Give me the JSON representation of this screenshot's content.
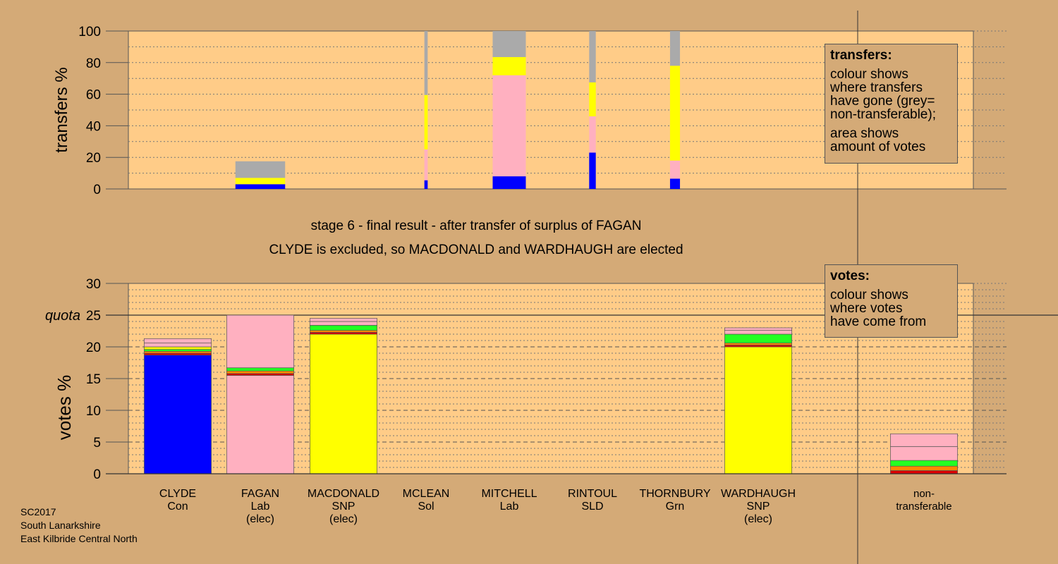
{
  "heading": {
    "line1": "stage 6 - final result - after transfer of surplus of FAGAN",
    "line2": "CLYDE is excluded, so MACDONALD and WARDHAUGH are elected"
  },
  "footer": {
    "line1": "SC2017",
    "line2": "South Lanarkshire",
    "line3": "East Kilbride Central North"
  },
  "notes": {
    "transfers": {
      "title": "transfers:",
      "lines": [
        "colour shows",
        "where transfers",
        "have gone (grey=",
        "non-transferable);"
      ],
      "lines2": [
        "area shows",
        "amount of votes"
      ]
    },
    "votes": {
      "title": "votes:",
      "lines": [
        "colour shows",
        "where votes",
        "have come from"
      ]
    }
  },
  "colors": {
    "background": "#d4aa77",
    "plot": "#ffcc88",
    "blue": "#0000ff",
    "pink": "#ffb0c0",
    "yellow": "#ffff00",
    "green": "#22ff22",
    "orange": "#ff8800",
    "red": "#dd0000",
    "grey": "#aaaaaa"
  },
  "chart_data": [
    {
      "type": "bar",
      "ylabel": "transfers %",
      "ylim": [
        0,
        100
      ],
      "yticks": [
        "0",
        "20",
        "40",
        "60",
        "80",
        "100"
      ],
      "categories": [
        "CLYDE",
        "FAGAN",
        "MACDONALD",
        "MCLEAN",
        "MITCHELL",
        "RINTOUL",
        "THORNBURY",
        "WARDHAUGH"
      ],
      "bars": [
        {
          "candidate": "FAGAN",
          "width": 0.6,
          "segments": [
            {
              "color": "blue",
              "value": 3
            },
            {
              "color": "yellow",
              "value": 4
            },
            {
              "color": "grey",
              "value": 10.5
            }
          ]
        },
        {
          "candidate": "MCLEAN",
          "width": 0.04,
          "segments": [
            {
              "color": "blue",
              "value": 5.5
            },
            {
              "color": "pink",
              "value": 19.5
            },
            {
              "color": "yellow",
              "value": 34.5
            },
            {
              "color": "grey",
              "value": 40.5
            }
          ]
        },
        {
          "candidate": "MITCHELL",
          "width": 0.4,
          "segments": [
            {
              "color": "blue",
              "value": 8
            },
            {
              "color": "pink",
              "value": 64
            },
            {
              "color": "yellow",
              "value": 11.5
            },
            {
              "color": "grey",
              "value": 16.5
            }
          ]
        },
        {
          "candidate": "RINTOUL",
          "width": 0.08,
          "segments": [
            {
              "color": "blue",
              "value": 23
            },
            {
              "color": "pink",
              "value": 23
            },
            {
              "color": "yellow",
              "value": 21.5
            },
            {
              "color": "grey",
              "value": 32.5
            }
          ]
        },
        {
          "candidate": "THORNBURY",
          "width": 0.12,
          "segments": [
            {
              "color": "blue",
              "value": 6.5
            },
            {
              "color": "pink",
              "value": 11.5
            },
            {
              "color": "yellow",
              "value": 60
            },
            {
              "color": "grey",
              "value": 22
            }
          ]
        }
      ],
      "legend": "right"
    },
    {
      "type": "bar",
      "ylabel": "votes %",
      "ylim": [
        0,
        30
      ],
      "yticks": [
        "0",
        "5",
        "10",
        "15",
        "20",
        "25",
        "30"
      ],
      "quota": {
        "label": "quota",
        "value": 25
      },
      "categories": [
        {
          "name": "CLYDE",
          "party": "Con",
          "status": ""
        },
        {
          "name": "FAGAN",
          "party": "Lab",
          "status": "(elec)"
        },
        {
          "name": "MACDONALD",
          "party": "SNP",
          "status": "(elec)"
        },
        {
          "name": "MCLEAN",
          "party": "Sol",
          "status": ""
        },
        {
          "name": "MITCHELL",
          "party": "Lab",
          "status": ""
        },
        {
          "name": "RINTOUL",
          "party": "SLD",
          "status": ""
        },
        {
          "name": "THORNBURY",
          "party": "Grn",
          "status": ""
        },
        {
          "name": "WARDHAUGH",
          "party": "SNP",
          "status": "(elec)"
        }
      ],
      "nontransferable_label": [
        "non-",
        "transferable"
      ],
      "bars": [
        {
          "candidate": "CLYDE",
          "segments": [
            {
              "color": "blue",
              "value": 18.7
            },
            {
              "color": "red",
              "value": 0.3
            },
            {
              "color": "orange",
              "value": 0.3
            },
            {
              "color": "green",
              "value": 0.3
            },
            {
              "color": "yellow",
              "value": 0.4
            },
            {
              "color": "pink",
              "value": 0.6
            },
            {
              "color": "pink",
              "value": 0.7
            }
          ]
        },
        {
          "candidate": "FAGAN",
          "segments": [
            {
              "color": "pink",
              "value": 15.5
            },
            {
              "color": "red",
              "value": 0.3
            },
            {
              "color": "orange",
              "value": 0.4
            },
            {
              "color": "green",
              "value": 0.5
            },
            {
              "color": "pink",
              "value": 8.3
            }
          ]
        },
        {
          "candidate": "MACDONALD",
          "segments": [
            {
              "color": "yellow",
              "value": 22.0
            },
            {
              "color": "red",
              "value": 0.3
            },
            {
              "color": "orange",
              "value": 0.3
            },
            {
              "color": "green",
              "value": 0.8
            },
            {
              "color": "pink",
              "value": 0.6
            },
            {
              "color": "pink",
              "value": 0.5
            }
          ]
        },
        {
          "candidate": "WARDHAUGH",
          "segments": [
            {
              "color": "yellow",
              "value": 20.0
            },
            {
              "color": "red",
              "value": 0.3
            },
            {
              "color": "orange",
              "value": 0.3
            },
            {
              "color": "green",
              "value": 1.4
            },
            {
              "color": "pink",
              "value": 0.6
            },
            {
              "color": "pink",
              "value": 0.4
            }
          ]
        },
        {
          "candidate": "non-transferable",
          "segments": [
            {
              "color": "red",
              "value": 0.5
            },
            {
              "color": "orange",
              "value": 0.7
            },
            {
              "color": "green",
              "value": 0.9
            },
            {
              "color": "pink",
              "value": 2.2
            },
            {
              "color": "pink",
              "value": 2.0
            }
          ]
        }
      ],
      "legend": "right"
    }
  ]
}
